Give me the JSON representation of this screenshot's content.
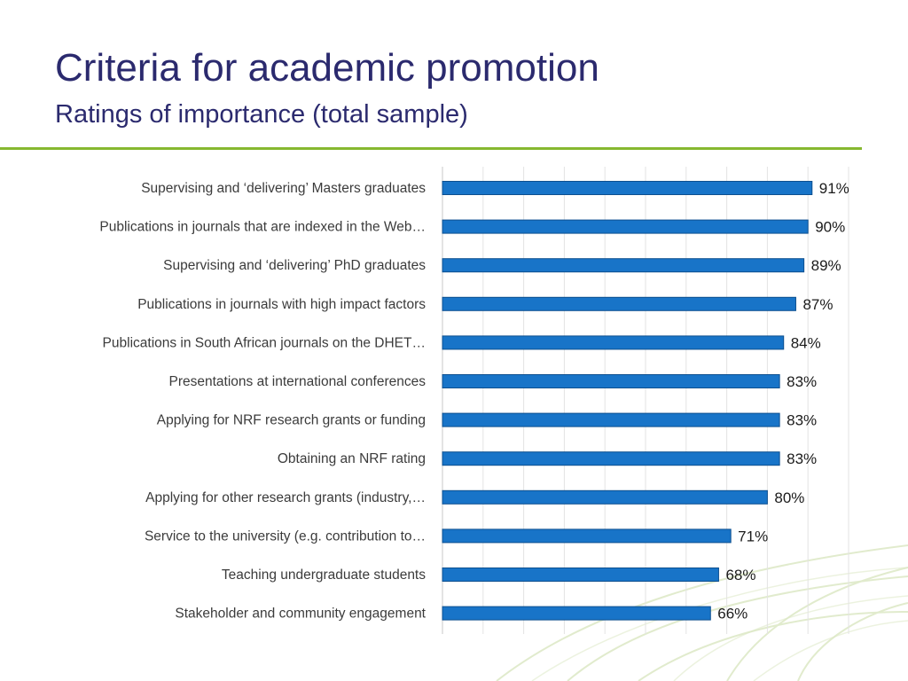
{
  "slide": {
    "title": "Criteria for academic promotion",
    "subtitle": "Ratings of importance (total sample)",
    "accent_color": "#86b830",
    "title_color": "#2b2a6e"
  },
  "chart_data": {
    "type": "bar",
    "orientation": "horizontal",
    "categories": [
      "Supervising and ‘delivering’ Masters graduates",
      "Publications in journals that are indexed in the Web…",
      "Supervising and ‘delivering’ PhD graduates",
      "Publications in journals with high impact factors",
      "Publications in South African journals on the DHET…",
      "Presentations at international conferences",
      "Applying for NRF research grants or funding",
      "Obtaining an NRF rating",
      "Applying for other research grants (industry,…",
      "Service to the university (e.g. contribution to…",
      "Teaching undergraduate students",
      "Stakeholder and community engagement"
    ],
    "values": [
      91,
      90,
      89,
      87,
      84,
      83,
      83,
      83,
      80,
      71,
      68,
      66
    ],
    "value_labels": [
      "91%",
      "90%",
      "89%",
      "87%",
      "84%",
      "83%",
      "83%",
      "83%",
      "80%",
      "71%",
      "68%",
      "66%"
    ],
    "xlim": [
      0,
      100
    ],
    "grid": true,
    "bar_color": "#1874c8",
    "bar_edge_color": "#0d4f8f"
  }
}
